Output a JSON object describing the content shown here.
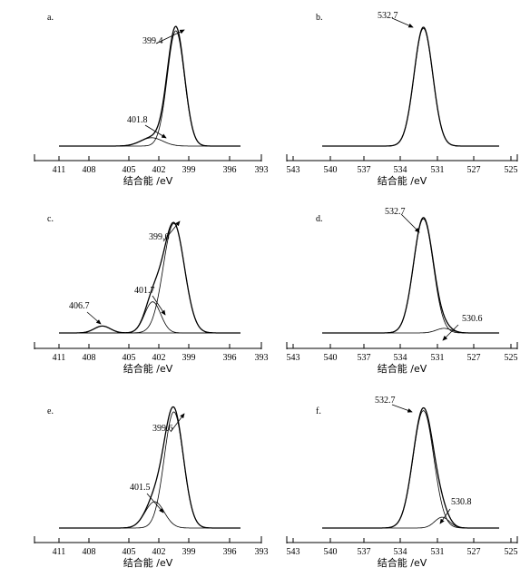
{
  "chart_data": [
    {
      "type": "line",
      "panel": "a.",
      "xlabel": "结合能 /eV",
      "x_ticks": [
        "411",
        "408",
        "405",
        "402",
        "399",
        "396",
        "393"
      ],
      "xlim": [
        411,
        393
      ],
      "x_reversed": true,
      "y_scale": "arbitrary",
      "series": [
        {
          "peaks": [
            {
              "center": 399.4,
              "height": 1.0,
              "sigma": 0.85
            },
            {
              "center": 401.8,
              "height": 0.07,
              "sigma": 1.1
            }
          ]
        },
        {
          "peaks": [
            {
              "center": 399.4,
              "height": 0.97,
              "sigma": 0.85
            }
          ]
        },
        {
          "peaks": [
            {
              "center": 401.8,
              "height": 0.07,
              "sigma": 1.1
            }
          ]
        }
      ],
      "annotations": [
        {
          "text": "399.4",
          "x": 399.4
        },
        {
          "text": "401.8",
          "x": 401.8
        }
      ]
    },
    {
      "type": "line",
      "panel": "b.",
      "xlabel": "结合能 /eV",
      "x_ticks": [
        "543",
        "540",
        "537",
        "534",
        "531",
        "527",
        "525"
      ],
      "xlim": [
        543,
        525
      ],
      "x_reversed": true,
      "y_scale": "arbitrary",
      "series": [
        {
          "peaks": [
            {
              "center": 532.7,
              "height": 1.0,
              "sigma": 0.95
            }
          ]
        },
        {
          "peaks": [
            {
              "center": 532.7,
              "height": 0.99,
              "sigma": 0.95
            }
          ]
        }
      ],
      "annotations": [
        {
          "text": "532.7",
          "x": 532.7
        }
      ]
    },
    {
      "type": "line",
      "panel": "c.",
      "xlabel": "结合能 /eV",
      "x_ticks": [
        "411",
        "408",
        "405",
        "402",
        "399",
        "396",
        "393"
      ],
      "xlim": [
        411,
        393
      ],
      "x_reversed": true,
      "y_scale": "arbitrary",
      "series": [
        {
          "peaks": [
            {
              "center": 399.6,
              "height": 0.95,
              "sigma": 1.05
            },
            {
              "center": 401.7,
              "height": 0.27,
              "sigma": 0.8
            },
            {
              "center": 406.7,
              "height": 0.06,
              "sigma": 0.8
            }
          ]
        },
        {
          "peaks": [
            {
              "center": 399.6,
              "height": 0.95,
              "sigma": 1.05
            }
          ]
        },
        {
          "peaks": [
            {
              "center": 401.7,
              "height": 0.27,
              "sigma": 0.8
            }
          ]
        },
        {
          "peaks": [
            {
              "center": 406.7,
              "height": 0.06,
              "sigma": 0.8
            }
          ]
        }
      ],
      "annotations": [
        {
          "text": "399.6",
          "x": 399.6
        },
        {
          "text": "401.7",
          "x": 401.7
        },
        {
          "text": "406.7",
          "x": 406.7
        }
      ]
    },
    {
      "type": "line",
      "panel": "d.",
      "xlabel": "结合能 /eV",
      "x_ticks": [
        "543",
        "540",
        "537",
        "534",
        "531",
        "527",
        "525"
      ],
      "xlim": [
        543,
        525
      ],
      "x_reversed": true,
      "y_scale": "arbitrary",
      "series": [
        {
          "peaks": [
            {
              "center": 532.7,
              "height": 1.0,
              "sigma": 1.0
            },
            {
              "center": 530.6,
              "height": 0.04,
              "sigma": 0.8
            }
          ]
        },
        {
          "peaks": [
            {
              "center": 532.7,
              "height": 0.99,
              "sigma": 1.0
            }
          ]
        },
        {
          "peaks": [
            {
              "center": 530.6,
              "height": 0.04,
              "sigma": 0.8
            }
          ]
        }
      ],
      "annotations": [
        {
          "text": "532.7",
          "x": 532.7
        },
        {
          "text": "530.6",
          "x": 530.6
        }
      ]
    },
    {
      "type": "line",
      "panel": "e.",
      "xlabel": "结合能 /eV",
      "x_ticks": [
        "411",
        "408",
        "405",
        "402",
        "399",
        "396",
        "393"
      ],
      "xlim": [
        411,
        393
      ],
      "x_reversed": true,
      "y_scale": "arbitrary",
      "series": [
        {
          "peaks": [
            {
              "center": 399.6,
              "height": 0.98,
              "sigma": 0.95
            },
            {
              "center": 401.5,
              "height": 0.22,
              "sigma": 0.95
            }
          ]
        },
        {
          "peaks": [
            {
              "center": 399.6,
              "height": 0.97,
              "sigma": 0.95
            }
          ]
        },
        {
          "peaks": [
            {
              "center": 401.5,
              "height": 0.22,
              "sigma": 0.95
            }
          ]
        }
      ],
      "annotations": [
        {
          "text": "399.6",
          "x": 399.6
        },
        {
          "text": "401.5",
          "x": 401.5
        }
      ]
    },
    {
      "type": "line",
      "panel": "f.",
      "xlabel": "结合能 /eV",
      "x_ticks": [
        "543",
        "540",
        "537",
        "534",
        "531",
        "527",
        "525"
      ],
      "xlim": [
        543,
        525
      ],
      "x_reversed": true,
      "y_scale": "arbitrary",
      "series": [
        {
          "peaks": [
            {
              "center": 532.7,
              "height": 1.0,
              "sigma": 1.05
            },
            {
              "center": 530.8,
              "height": 0.09,
              "sigma": 0.75
            }
          ]
        },
        {
          "peaks": [
            {
              "center": 532.7,
              "height": 0.98,
              "sigma": 1.05
            }
          ]
        },
        {
          "peaks": [
            {
              "center": 530.8,
              "height": 0.09,
              "sigma": 0.75
            }
          ]
        }
      ],
      "annotations": [
        {
          "text": "532.7",
          "x": 532.7
        },
        {
          "text": "530.8",
          "x": 530.8
        }
      ]
    }
  ]
}
